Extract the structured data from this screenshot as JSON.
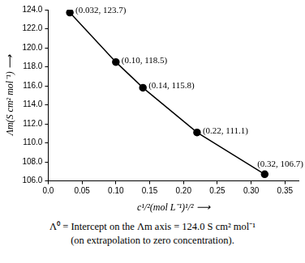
{
  "chart_data": {
    "type": "line",
    "x": [
      0.032,
      0.1,
      0.14,
      0.22,
      0.32
    ],
    "values": [
      123.7,
      118.5,
      115.8,
      111.1,
      106.7
    ],
    "value_labels": [
      "(0.032, 123.7)",
      "(0.10, 118.5)",
      "(0.14, 115.8)",
      "(0.22, 111.1)",
      "(0.32, 106.7)"
    ],
    "data_labels": true,
    "color": "#000000",
    "marker": "circle",
    "line_style": "solid",
    "x_label": "c¹/²(mol L⁻¹)¹/² ⟶",
    "y_label": "Λm(S cm² mol⁻¹) ⟶",
    "xlim": [
      0,
      0.37
    ],
    "xticks": [
      {
        "value": 0,
        "label": "0.0"
      },
      0.05,
      {
        "value": 0.1,
        "label": "0.10"
      },
      0.15,
      {
        "value": 0.2,
        "label": "0.20"
      },
      0.25,
      {
        "value": 0.3,
        "label": "0.30"
      },
      0.35
    ],
    "ylim": [
      106,
      124
    ],
    "yticks": [
      {
        "value": 106,
        "label": "106.0"
      },
      {
        "value": 108,
        "label": "108.0"
      },
      {
        "value": 110,
        "label": "110.0"
      },
      {
        "value": 112,
        "label": "112.0"
      },
      {
        "value": 114,
        "label": "114.0"
      },
      {
        "value": 116,
        "label": "116.0"
      },
      {
        "value": 118,
        "label": "118.0"
      },
      {
        "value": 120,
        "label": "120.0"
      },
      {
        "value": 122,
        "label": "122.0"
      },
      {
        "value": 124,
        "label": "124.0"
      }
    ],
    "grid": false,
    "caption": [
      "Λ⁰ = Intercept on the Λm axis = 124.0 S cm² mol⁻¹",
      "(on extrapolation to zero concentration)."
    ]
  }
}
